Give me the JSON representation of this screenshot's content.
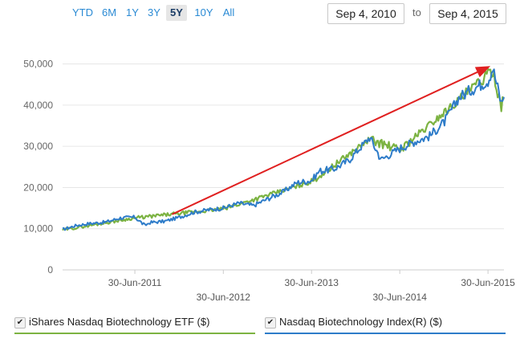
{
  "range_buttons": [
    {
      "label": "YTD"
    },
    {
      "label": "6M"
    },
    {
      "label": "1Y"
    },
    {
      "label": "3Y"
    },
    {
      "label": "5Y",
      "active": true
    },
    {
      "label": "10Y"
    },
    {
      "label": "All"
    }
  ],
  "date_range": {
    "from": "Sep 4, 2010",
    "to_label": "to",
    "to": "Sep 4, 2015"
  },
  "legend": [
    {
      "label": "iShares Nasdaq Biotechnology ETF ($)",
      "checked": true,
      "color": "#7cb342"
    },
    {
      "label": "Nasdaq Biotechnology Index(R) ($)",
      "checked": true,
      "color": "#2e7cc9"
    }
  ],
  "chart_data": {
    "type": "line",
    "y_ticks": [
      "0",
      "10,000",
      "20,000",
      "30,000",
      "40,000",
      "50,000"
    ],
    "ylim": [
      0,
      55000
    ],
    "x_ticks": [
      "30-Jun-2011",
      "30-Jun-2012",
      "30-Jun-2013",
      "30-Jun-2014",
      "30-Jun-2015"
    ],
    "series": [
      {
        "name": "Nasdaq Biotechnology Index(R) ($)",
        "color": "#2e7cc9",
        "points": [
          [
            "2010-09-04",
            9800
          ],
          [
            "2010-11-01",
            10800
          ],
          [
            "2011-01-01",
            11300
          ],
          [
            "2011-03-01",
            11600
          ],
          [
            "2011-05-01",
            12600
          ],
          [
            "2011-06-30",
            12800
          ],
          [
            "2011-08-10",
            10800
          ],
          [
            "2011-09-01",
            11500
          ],
          [
            "2011-11-01",
            11800
          ],
          [
            "2012-01-01",
            12800
          ],
          [
            "2012-03-01",
            14000
          ],
          [
            "2012-05-01",
            14600
          ],
          [
            "2012-06-30",
            15000
          ],
          [
            "2012-09-01",
            16200
          ],
          [
            "2012-11-01",
            15600
          ],
          [
            "2013-01-01",
            17300
          ],
          [
            "2013-03-01",
            18800
          ],
          [
            "2013-05-01",
            21200
          ],
          [
            "2013-06-30",
            21700
          ],
          [
            "2013-08-01",
            24000
          ],
          [
            "2013-10-01",
            24500
          ],
          [
            "2013-12-01",
            26600
          ],
          [
            "2014-02-25",
            32200
          ],
          [
            "2014-04-15",
            26800
          ],
          [
            "2014-06-30",
            29500
          ],
          [
            "2014-09-01",
            31200
          ],
          [
            "2014-11-01",
            32500
          ],
          [
            "2015-01-01",
            36000
          ],
          [
            "2015-03-01",
            41800
          ],
          [
            "2015-05-01",
            44100
          ],
          [
            "2015-06-30",
            46000
          ],
          [
            "2015-07-20",
            49000
          ],
          [
            "2015-08-24",
            40500
          ],
          [
            "2015-09-04",
            42000
          ]
        ]
      },
      {
        "name": "iShares Nasdaq Biotechnology ETF ($)",
        "color": "#7cb342",
        "points": [
          [
            "2010-09-04",
            9700
          ],
          [
            "2011-06-30",
            12600
          ],
          [
            "2012-06-30",
            14800
          ],
          [
            "2013-06-30",
            21400
          ],
          [
            "2014-02-25",
            31700
          ],
          [
            "2014-06-30",
            29100
          ],
          [
            "2015-03-01",
            41200
          ],
          [
            "2015-07-20",
            48400
          ],
          [
            "2015-08-24",
            39900
          ],
          [
            "2015-09-04",
            41400
          ]
        ]
      }
    ],
    "annotation": {
      "type": "arrow",
      "color": "#e02020",
      "from": [
        "2011-12-01",
        13500
      ],
      "to": [
        "2015-07-10",
        49500
      ]
    }
  }
}
